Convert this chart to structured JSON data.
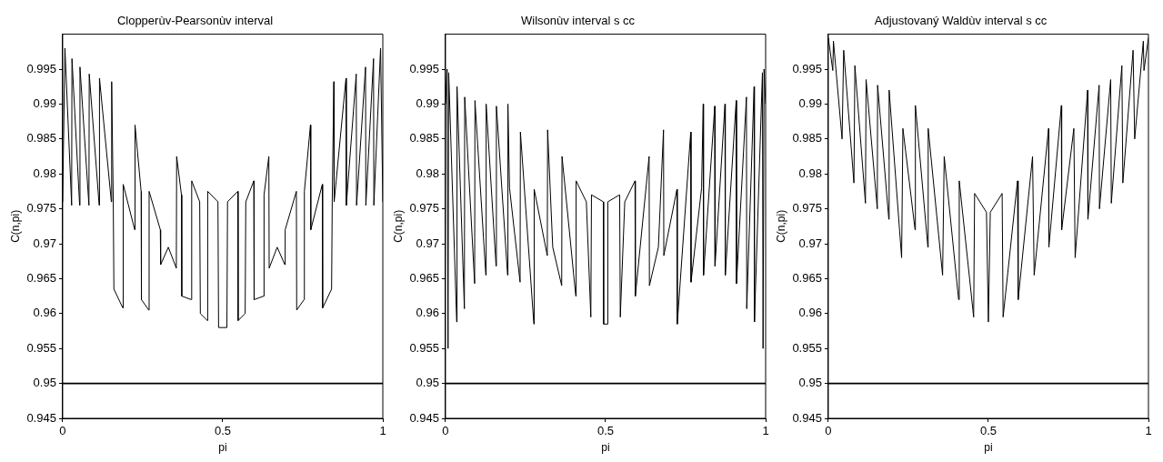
{
  "chart_data": [
    {
      "type": "line",
      "title": "Clopperùv-Pearsonùv interval",
      "xlabel": "pi",
      "ylabel": "C(n,pi)",
      "color": "#000000",
      "marker": "none",
      "grid": false,
      "xlim": [
        0,
        1
      ],
      "xticks": [
        0,
        0.5,
        1
      ],
      "ylim": [
        0.945,
        1
      ],
      "yticks": [
        0.945,
        0.95,
        0.955,
        0.96,
        0.965,
        0.97,
        0.975,
        0.98,
        0.985,
        0.99,
        0.995
      ],
      "ref_lines": [
        {
          "axis": "y",
          "value": 0.95,
          "color": "#000000"
        }
      ],
      "x": [
        0,
        0.007,
        0.028,
        0.029,
        0.053,
        0.054,
        0.082,
        0.083,
        0.114,
        0.115,
        0.152,
        0.153,
        0.158,
        0.16,
        0.188,
        0.189,
        0.225,
        0.226,
        0.245,
        0.246,
        0.269,
        0.27,
        0.305,
        0.306,
        0.33,
        0.355,
        0.356,
        0.371,
        0.372,
        0.402,
        0.403,
        0.428,
        0.43,
        0.452,
        0.453,
        0.485,
        0.487,
        0.5,
        0.513,
        0.515,
        0.547,
        0.548,
        0.57,
        0.572,
        0.597,
        0.598,
        0.628,
        0.629,
        0.644,
        0.645,
        0.67,
        0.694,
        0.695,
        0.73,
        0.731,
        0.754,
        0.755,
        0.774,
        0.775,
        0.811,
        0.812,
        0.84,
        0.842,
        0.847,
        0.848,
        0.885,
        0.886,
        0.917,
        0.918,
        0.946,
        0.947,
        0.971,
        0.972,
        0.993,
        1
      ],
      "values": [
        0.976,
        0.998,
        0.9755,
        0.9965,
        0.9755,
        0.9953,
        0.9755,
        0.9943,
        0.9755,
        0.9937,
        0.976,
        0.9932,
        0.976,
        0.9635,
        0.9608,
        0.9785,
        0.972,
        0.987,
        0.9775,
        0.962,
        0.9605,
        0.9775,
        0.972,
        0.967,
        0.9695,
        0.9665,
        0.9825,
        0.977,
        0.9625,
        0.962,
        0.979,
        0.976,
        0.96,
        0.959,
        0.9775,
        0.976,
        0.958,
        0.958,
        0.958,
        0.976,
        0.9775,
        0.959,
        0.96,
        0.976,
        0.979,
        0.962,
        0.9625,
        0.977,
        0.9825,
        0.9665,
        0.9695,
        0.967,
        0.972,
        0.9775,
        0.9605,
        0.962,
        0.9775,
        0.987,
        0.972,
        0.9785,
        0.9608,
        0.9635,
        0.976,
        0.9932,
        0.976,
        0.9937,
        0.9755,
        0.9943,
        0.9755,
        0.9953,
        0.9755,
        0.9965,
        0.9755,
        0.998,
        0.976
      ]
    },
    {
      "type": "line",
      "title": "Wilsonùv interval s cc",
      "xlabel": "pi",
      "ylabel": "C(n,pi)",
      "color": "#000000",
      "marker": "none",
      "grid": false,
      "xlim": [
        0,
        1
      ],
      "xticks": [
        0,
        0.5,
        1
      ],
      "ylim": [
        0.945,
        1
      ],
      "yticks": [
        0.945,
        0.95,
        0.955,
        0.96,
        0.965,
        0.97,
        0.975,
        0.98,
        0.985,
        0.99,
        0.995
      ],
      "ref_lines": [
        {
          "axis": "y",
          "value": 0.95,
          "color": "#000000"
        }
      ],
      "x": [
        0,
        0.005,
        0.008,
        0.01,
        0.035,
        0.036,
        0.059,
        0.06,
        0.091,
        0.092,
        0.126,
        0.127,
        0.158,
        0.159,
        0.194,
        0.195,
        0.2,
        0.233,
        0.234,
        0.276,
        0.277,
        0.318,
        0.319,
        0.335,
        0.363,
        0.364,
        0.407,
        0.408,
        0.44,
        0.454,
        0.456,
        0.493,
        0.494,
        0.5,
        0.506,
        0.507,
        0.544,
        0.546,
        0.56,
        0.592,
        0.593,
        0.636,
        0.637,
        0.665,
        0.681,
        0.682,
        0.723,
        0.724,
        0.766,
        0.767,
        0.8,
        0.805,
        0.806,
        0.841,
        0.842,
        0.873,
        0.874,
        0.908,
        0.909,
        0.94,
        0.941,
        0.964,
        0.965,
        0.99,
        0.992,
        0.995,
        1
      ],
      "values": [
        0.99,
        0.995,
        0.955,
        0.9945,
        0.9588,
        0.9925,
        0.9607,
        0.991,
        0.9643,
        0.9905,
        0.9655,
        0.99,
        0.9668,
        0.9897,
        0.9655,
        0.99,
        0.978,
        0.9645,
        0.986,
        0.9585,
        0.9778,
        0.9683,
        0.9863,
        0.9695,
        0.964,
        0.9825,
        0.9625,
        0.979,
        0.976,
        0.9595,
        0.977,
        0.976,
        0.9585,
        0.9585,
        0.9585,
        0.976,
        0.977,
        0.9595,
        0.976,
        0.979,
        0.9625,
        0.9825,
        0.964,
        0.9695,
        0.9863,
        0.9683,
        0.9778,
        0.9585,
        0.986,
        0.9645,
        0.978,
        0.99,
        0.9655,
        0.9897,
        0.9668,
        0.99,
        0.9655,
        0.9905,
        0.9643,
        0.991,
        0.9607,
        0.9925,
        0.9588,
        0.9945,
        0.955,
        0.995,
        0.99
      ]
    },
    {
      "type": "line",
      "title": "Adjustovaný Waldùv interval s cc",
      "xlabel": "pi",
      "ylabel": "C(n,pi)",
      "color": "#000000",
      "marker": "none",
      "grid": false,
      "xlim": [
        0,
        1
      ],
      "xticks": [
        0,
        0.5,
        1
      ],
      "ylim": [
        0.945,
        1
      ],
      "yticks": [
        0.945,
        0.95,
        0.955,
        0.96,
        0.965,
        0.97,
        0.975,
        0.98,
        0.985,
        0.99,
        0.995
      ],
      "ref_lines": [
        {
          "axis": "y",
          "value": 0.95,
          "color": "#000000"
        }
      ],
      "x": [
        0,
        0.014,
        0.016,
        0.043,
        0.048,
        0.08,
        0.083,
        0.116,
        0.118,
        0.153,
        0.154,
        0.189,
        0.19,
        0.229,
        0.233,
        0.271,
        0.272,
        0.311,
        0.312,
        0.357,
        0.362,
        0.407,
        0.409,
        0.454,
        0.457,
        0.494,
        0.5,
        0.506,
        0.543,
        0.546,
        0.591,
        0.593,
        0.638,
        0.643,
        0.688,
        0.689,
        0.728,
        0.729,
        0.767,
        0.771,
        0.81,
        0.811,
        0.846,
        0.847,
        0.882,
        0.884,
        0.917,
        0.92,
        0.952,
        0.957,
        0.984,
        0.986,
        1
      ],
      "values": [
        0.9995,
        0.9948,
        0.999,
        0.985,
        0.9977,
        0.9787,
        0.9955,
        0.9758,
        0.9935,
        0.975,
        0.9927,
        0.9735,
        0.992,
        0.968,
        0.9865,
        0.972,
        0.9898,
        0.9695,
        0.9865,
        0.9655,
        0.9825,
        0.962,
        0.979,
        0.9595,
        0.9772,
        0.9745,
        0.9588,
        0.9745,
        0.9772,
        0.9595,
        0.979,
        0.962,
        0.9825,
        0.9655,
        0.9865,
        0.9695,
        0.9898,
        0.972,
        0.9865,
        0.968,
        0.992,
        0.9735,
        0.9927,
        0.975,
        0.9935,
        0.9758,
        0.9955,
        0.9787,
        0.9977,
        0.985,
        0.999,
        0.9948,
        0.9995
      ]
    }
  ]
}
